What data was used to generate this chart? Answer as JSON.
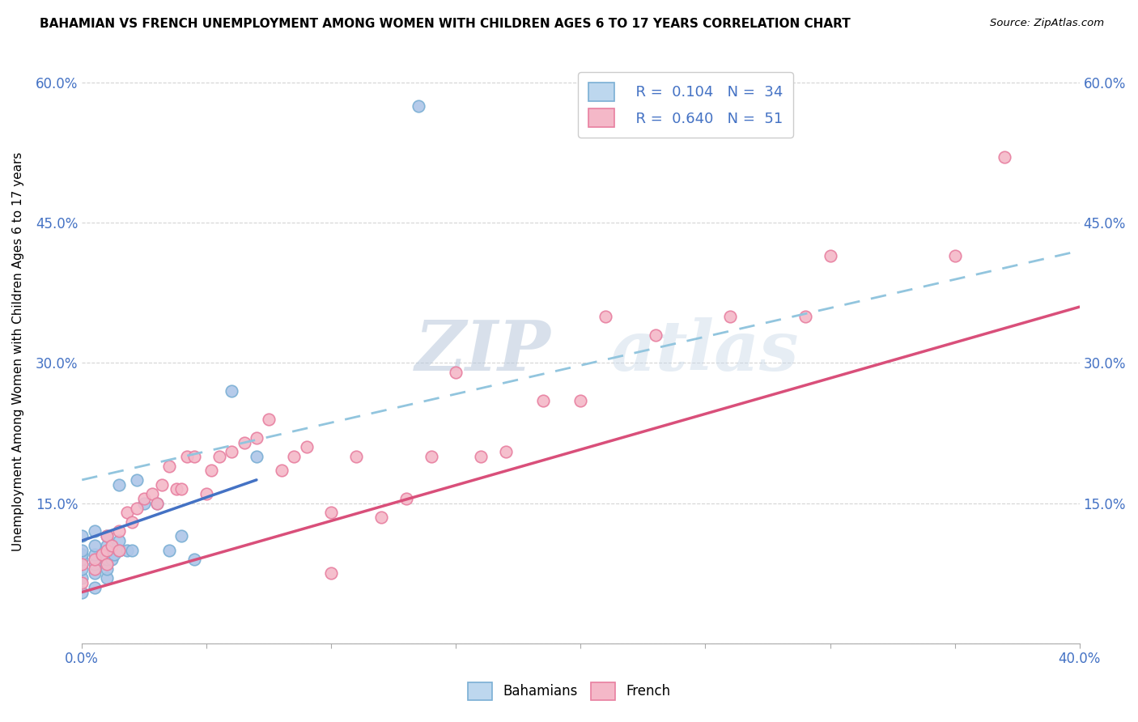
{
  "title": "BAHAMIAN VS FRENCH UNEMPLOYMENT AMONG WOMEN WITH CHILDREN AGES 6 TO 17 YEARS CORRELATION CHART",
  "source": "Source: ZipAtlas.com",
  "ylabel": "Unemployment Among Women with Children Ages 6 to 17 years",
  "xlim": [
    0.0,
    0.4
  ],
  "ylim": [
    0.0,
    0.625
  ],
  "yticks": [
    0.0,
    0.15,
    0.3,
    0.45,
    0.6
  ],
  "watermark_zip": "ZIP",
  "watermark_atlas": "atlas",
  "legend_r_blue": "R =  0.104",
  "legend_n_blue": "N =  34",
  "legend_r_pink": "R =  0.640",
  "legend_n_pink": "N =  51",
  "blue_scatter_face": "#aec6e8",
  "blue_scatter_edge": "#7aafd4",
  "pink_scatter_face": "#f4b8c8",
  "pink_scatter_edge": "#e87fa0",
  "blue_line_color": "#4472c4",
  "pink_line_color": "#d94f7a",
  "dashed_line_color": "#92c5de",
  "axis_tick_color": "#4472c4",
  "legend_box_blue_face": "#bdd7ee",
  "legend_box_blue_edge": "#7aafd4",
  "legend_box_pink_face": "#f4b8c8",
  "legend_box_pink_edge": "#e87fa0",
  "grid_color": "#d0d0d0",
  "bahamian_x": [
    0.0,
    0.0,
    0.0,
    0.0,
    0.0,
    0.0,
    0.0,
    0.005,
    0.005,
    0.005,
    0.005,
    0.005,
    0.005,
    0.01,
    0.01,
    0.01,
    0.01,
    0.01,
    0.012,
    0.013,
    0.015,
    0.015,
    0.015,
    0.018,
    0.02,
    0.022,
    0.025,
    0.03,
    0.035,
    0.04,
    0.045,
    0.06,
    0.07,
    0.135
  ],
  "bahamian_y": [
    0.055,
    0.07,
    0.08,
    0.09,
    0.095,
    0.1,
    0.115,
    0.06,
    0.075,
    0.085,
    0.095,
    0.105,
    0.12,
    0.07,
    0.08,
    0.09,
    0.105,
    0.115,
    0.09,
    0.095,
    0.1,
    0.11,
    0.17,
    0.1,
    0.1,
    0.175,
    0.15,
    0.15,
    0.1,
    0.115,
    0.09,
    0.27,
    0.2,
    0.575
  ],
  "french_x": [
    0.0,
    0.0,
    0.005,
    0.005,
    0.008,
    0.01,
    0.01,
    0.01,
    0.012,
    0.015,
    0.015,
    0.018,
    0.02,
    0.022,
    0.025,
    0.028,
    0.03,
    0.032,
    0.035,
    0.038,
    0.04,
    0.042,
    0.045,
    0.05,
    0.052,
    0.055,
    0.06,
    0.065,
    0.07,
    0.075,
    0.08,
    0.085,
    0.09,
    0.1,
    0.1,
    0.11,
    0.12,
    0.13,
    0.14,
    0.15,
    0.16,
    0.17,
    0.185,
    0.2,
    0.21,
    0.23,
    0.26,
    0.29,
    0.3,
    0.35,
    0.37
  ],
  "french_y": [
    0.065,
    0.085,
    0.08,
    0.09,
    0.095,
    0.085,
    0.1,
    0.115,
    0.105,
    0.1,
    0.12,
    0.14,
    0.13,
    0.145,
    0.155,
    0.16,
    0.15,
    0.17,
    0.19,
    0.165,
    0.165,
    0.2,
    0.2,
    0.16,
    0.185,
    0.2,
    0.205,
    0.215,
    0.22,
    0.24,
    0.185,
    0.2,
    0.21,
    0.075,
    0.14,
    0.2,
    0.135,
    0.155,
    0.2,
    0.29,
    0.2,
    0.205,
    0.26,
    0.26,
    0.35,
    0.33,
    0.35,
    0.35,
    0.415,
    0.415,
    0.52
  ],
  "blue_trend_x": [
    0.0,
    0.07
  ],
  "blue_trend_y": [
    0.11,
    0.175
  ],
  "pink_trend_x": [
    0.0,
    0.4
  ],
  "pink_trend_y": [
    0.055,
    0.36
  ],
  "dash_trend_x": [
    0.0,
    0.4
  ],
  "dash_trend_y": [
    0.175,
    0.42
  ]
}
